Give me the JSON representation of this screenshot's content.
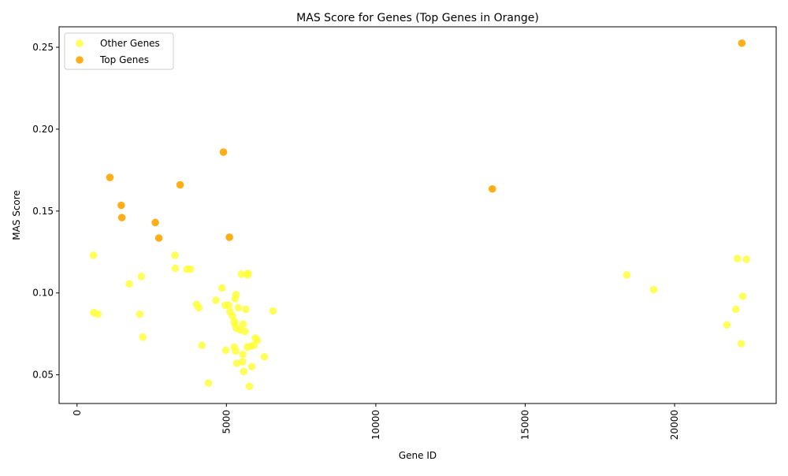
{
  "chart_data": {
    "type": "scatter",
    "title": "MAS Score for Genes (Top Genes in Orange)",
    "xlabel": "Gene ID",
    "ylabel": "MAS Score",
    "xlim": [
      -600,
      23400
    ],
    "ylim": [
      0.0325,
      0.2625
    ],
    "xticks": [
      0,
      5000,
      10000,
      15000,
      20000
    ],
    "xtick_labels": [
      "0",
      "5000",
      "10000",
      "15000",
      "20000"
    ],
    "yticks": [
      0.05,
      0.1,
      0.15,
      0.2,
      0.25
    ],
    "ytick_labels": [
      "0.05",
      "0.10",
      "0.15",
      "0.20",
      "0.25"
    ],
    "xtick_rotation": 90,
    "grid": false,
    "legend_position": "upper-left",
    "series": [
      {
        "name": "Other Genes",
        "color": "#ffff33",
        "opacity": 0.8,
        "points": [
          [
            550,
            0.123
          ],
          [
            560,
            0.088
          ],
          [
            700,
            0.087
          ],
          [
            1750,
            0.1055
          ],
          [
            2100,
            0.087
          ],
          [
            2150,
            0.11
          ],
          [
            2200,
            0.073
          ],
          [
            3280,
            0.123
          ],
          [
            3290,
            0.115
          ],
          [
            3680,
            0.1145
          ],
          [
            3800,
            0.1145
          ],
          [
            4000,
            0.093
          ],
          [
            4080,
            0.091
          ],
          [
            4180,
            0.068
          ],
          [
            4400,
            0.045
          ],
          [
            4650,
            0.0955
          ],
          [
            4850,
            0.103
          ],
          [
            4960,
            0.0925
          ],
          [
            4980,
            0.065
          ],
          [
            5080,
            0.0925
          ],
          [
            5120,
            0.0885
          ],
          [
            5200,
            0.086
          ],
          [
            5260,
            0.067
          ],
          [
            5270,
            0.0825
          ],
          [
            5280,
            0.081
          ],
          [
            5290,
            0.0965
          ],
          [
            5310,
            0.0645
          ],
          [
            5320,
            0.099
          ],
          [
            5330,
            0.0785
          ],
          [
            5350,
            0.057
          ],
          [
            5400,
            0.091
          ],
          [
            5460,
            0.0775
          ],
          [
            5500,
            0.1115
          ],
          [
            5540,
            0.058
          ],
          [
            5550,
            0.0625
          ],
          [
            5560,
            0.081
          ],
          [
            5580,
            0.052
          ],
          [
            5620,
            0.0765
          ],
          [
            5650,
            0.09
          ],
          [
            5700,
            0.067
          ],
          [
            5710,
            0.111
          ],
          [
            5720,
            0.112
          ],
          [
            5770,
            0.043
          ],
          [
            5820,
            0.0675
          ],
          [
            5850,
            0.055
          ],
          [
            5920,
            0.068
          ],
          [
            5970,
            0.0725
          ],
          [
            6030,
            0.071
          ],
          [
            6270,
            0.061
          ],
          [
            6560,
            0.089
          ],
          [
            18400,
            0.111
          ],
          [
            19300,
            0.102
          ],
          [
            21750,
            0.0805
          ],
          [
            22050,
            0.09
          ],
          [
            22100,
            0.121
          ],
          [
            22230,
            0.069
          ],
          [
            22280,
            0.098
          ],
          [
            22400,
            0.1205
          ]
        ]
      },
      {
        "name": "Top Genes",
        "color": "#ffa500",
        "opacity": 0.9,
        "points": [
          [
            1100,
            0.1705
          ],
          [
            1480,
            0.1535
          ],
          [
            1500,
            0.146
          ],
          [
            2620,
            0.143
          ],
          [
            2740,
            0.1335
          ],
          [
            3450,
            0.166
          ],
          [
            4900,
            0.186
          ],
          [
            5100,
            0.134
          ],
          [
            13900,
            0.1635
          ],
          [
            22250,
            0.2525
          ]
        ]
      }
    ]
  }
}
